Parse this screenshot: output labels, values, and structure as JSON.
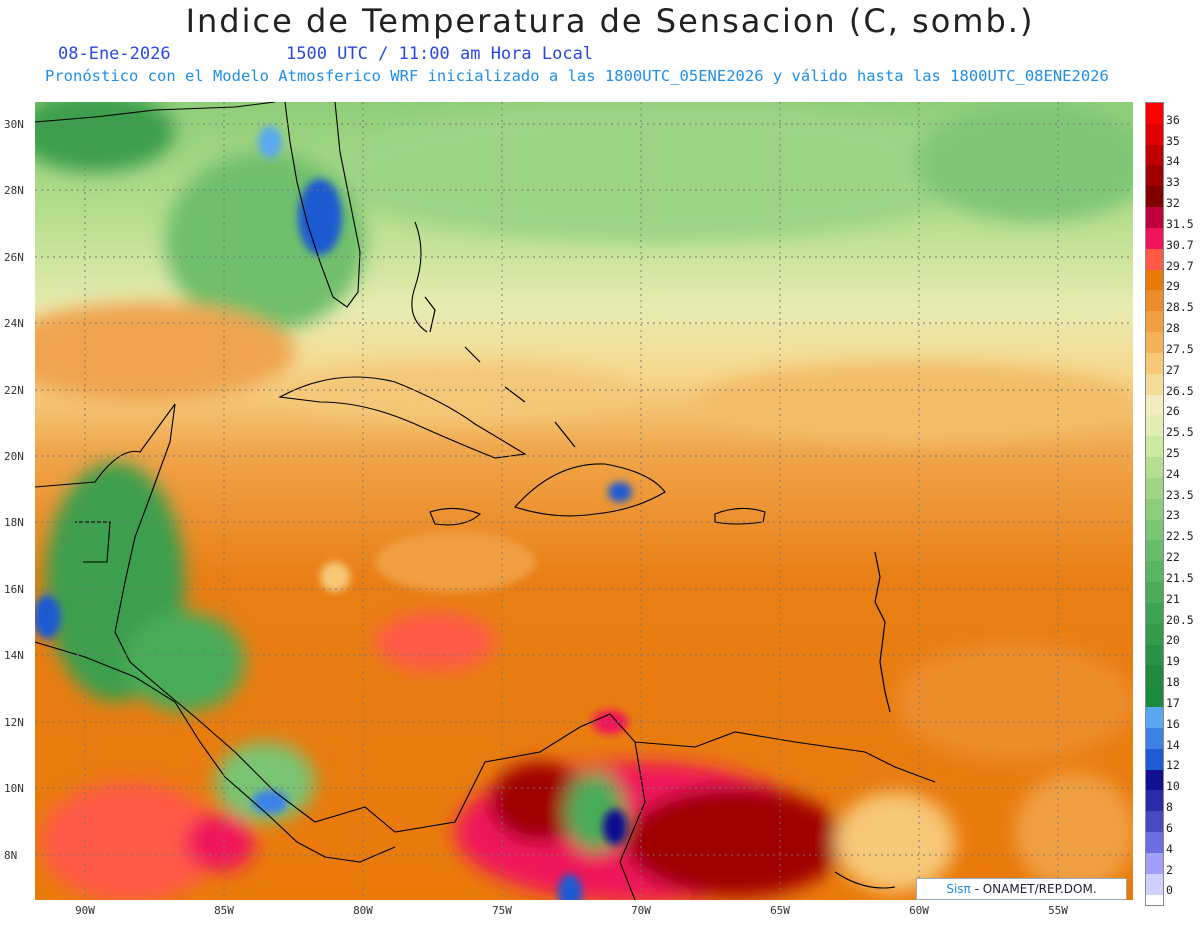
{
  "header": {
    "title": "Indice de Temperatura de Sensacion (C, somb.)",
    "date": "08-Ene-2026",
    "time": "1500 UTC / 11:00 am Hora Local",
    "subtitle": "Pronóstico con el Modelo Atmosferico WRF inicializado a las 1800UTC_05ENE2026 y válido hasta las  1800UTC_08ENE2026"
  },
  "map": {
    "lat_labels": [
      "30N",
      "28N",
      "26N",
      "24N",
      "22N",
      "20N",
      "18N",
      "16N",
      "14N",
      "12N",
      "10N",
      "8N"
    ],
    "lon_labels": [
      "90W",
      "85W",
      "80W",
      "75W",
      "70W",
      "65W",
      "60W",
      "55W"
    ],
    "lat_range": [
      6.8,
      30.8
    ],
    "lon_range": [
      -91.8,
      -52.4
    ],
    "gridlines": true
  },
  "colorbar": {
    "labels": [
      "36",
      "35",
      "34",
      "33",
      "32",
      "31.5",
      "30.7",
      "29.7",
      "29",
      "28.5",
      "28",
      "27.5",
      "27",
      "26.5",
      "26",
      "25.5",
      "25",
      "24",
      "23.5",
      "23",
      "22.5",
      "22",
      "21.5",
      "21",
      "20.5",
      "20",
      "19",
      "18",
      "17",
      "16",
      "14",
      "12",
      "10",
      "8",
      "6",
      "4",
      "2",
      "0"
    ],
    "colors": [
      "#ff0000",
      "#e00000",
      "#c00000",
      "#a00000",
      "#800000",
      "#c0003c",
      "#f0145a",
      "#ff5a46",
      "#e97a0a",
      "#ec8c2a",
      "#f09f42",
      "#f4b15a",
      "#f7c878",
      "#f4dc98",
      "#f2ecbe",
      "#e3eeb4",
      "#cde8a0",
      "#b5df8e",
      "#9fd585",
      "#8ccd7c",
      "#79c573",
      "#67bd6a",
      "#58b561",
      "#4aac59",
      "#3ea352",
      "#349b4b",
      "#2a9246",
      "#208a40",
      "#1a8a3c",
      "#5aa8f0",
      "#3c82e6",
      "#1e5ad2",
      "#101090",
      "#2a2aa8",
      "#4848c0",
      "#6e6ee0",
      "#a0a0f8",
      "#d0d0ff"
    ]
  },
  "credit": {
    "brand": "Sisπ",
    "text": " - ONAMET/REP.DOM."
  }
}
